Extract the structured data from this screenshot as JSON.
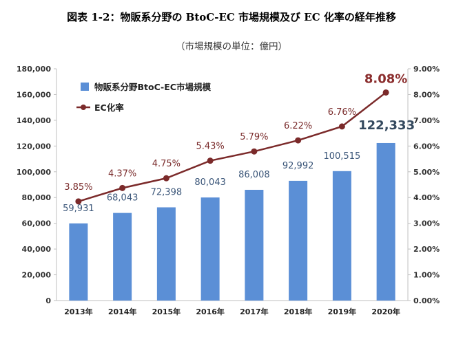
{
  "header": {
    "title": "図表 1-2：物販系分野の BtoC-EC 市場規模及び EC 化率の経年推移",
    "subtitle": "（市場規模の単位：億円）"
  },
  "colors": {
    "bar": "#5b8fd6",
    "line": "#7b2a2a",
    "axis": "#bfbfbf",
    "grid": "#ffffff"
  },
  "chart_data": {
    "type": "bar",
    "categories": [
      "2013年",
      "2014年",
      "2015年",
      "2016年",
      "2017年",
      "2018年",
      "2019年",
      "2020年"
    ],
    "series": [
      {
        "name": "物販系分野BtoC-EC市場規模",
        "type": "bar",
        "axis": "left",
        "values": [
          59931,
          68043,
          72398,
          80043,
          86008,
          92992,
          100515,
          122333
        ],
        "labels": [
          "59,931",
          "68,043",
          "72,398",
          "80,043",
          "86,008",
          "92,992",
          "100,515",
          "122,333"
        ]
      },
      {
        "name": "EC化率",
        "type": "line",
        "axis": "right",
        "values": [
          3.85,
          4.37,
          4.75,
          5.43,
          5.79,
          6.22,
          6.76,
          8.08
        ],
        "labels": [
          "3.85%",
          "4.37%",
          "4.75%",
          "5.43%",
          "5.79%",
          "6.22%",
          "6.76%",
          "8.08%"
        ]
      }
    ],
    "y_left": {
      "ylim": [
        0,
        180000
      ],
      "ticks": [
        "0",
        "20,000",
        "40,000",
        "60,000",
        "80,000",
        "100,000",
        "120,000",
        "140,000",
        "160,000",
        "180,000"
      ]
    },
    "y_right": {
      "ylim": [
        0,
        9
      ],
      "ticks": [
        "0.00%",
        "1.00%",
        "2.00%",
        "3.00%",
        "4.00%",
        "5.00%",
        "6.00%",
        "7.00%",
        "8.00%",
        "9.00%"
      ]
    },
    "xlabel": "",
    "ylabel": "",
    "grid": false,
    "legend_position": "top-left"
  }
}
